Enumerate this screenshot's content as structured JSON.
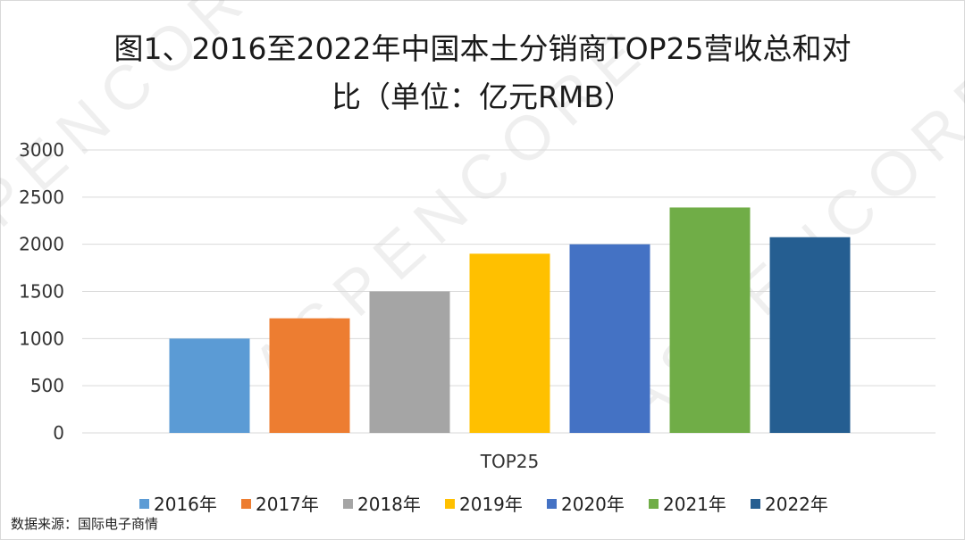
{
  "chart_data": {
    "type": "bar",
    "title": "图1、2016至2022年中国本土分销商TOP25营收总和对比（单位：亿元RMB）",
    "title_lines": [
      "图1、2016至2022年中国本土分销商TOP25营收总和对",
      "比（单位：亿元RMB）"
    ],
    "categories": [
      "TOP25"
    ],
    "xlabel": "",
    "ylabel": "",
    "ylim": [
      0,
      3000
    ],
    "yticks": [
      0,
      500,
      1000,
      1500,
      2000,
      2500,
      3000
    ],
    "grid": true,
    "legend_position": "bottom",
    "series": [
      {
        "name": "2016年",
        "values": [
          1000
        ],
        "color": "#5b9bd5"
      },
      {
        "name": "2017年",
        "values": [
          1215
        ],
        "color": "#ed7d31"
      },
      {
        "name": "2018年",
        "values": [
          1500
        ],
        "color": "#a5a5a5"
      },
      {
        "name": "2019年",
        "values": [
          1900
        ],
        "color": "#ffc000"
      },
      {
        "name": "2020年",
        "values": [
          2000
        ],
        "color": "#4472c4"
      },
      {
        "name": "2021年",
        "values": [
          2390
        ],
        "color": "#70ad47"
      },
      {
        "name": "2022年",
        "values": [
          2075
        ],
        "color": "#255e91"
      }
    ]
  },
  "source_note": "数据来源：国际电子商情",
  "watermark": "ASPENCORE"
}
